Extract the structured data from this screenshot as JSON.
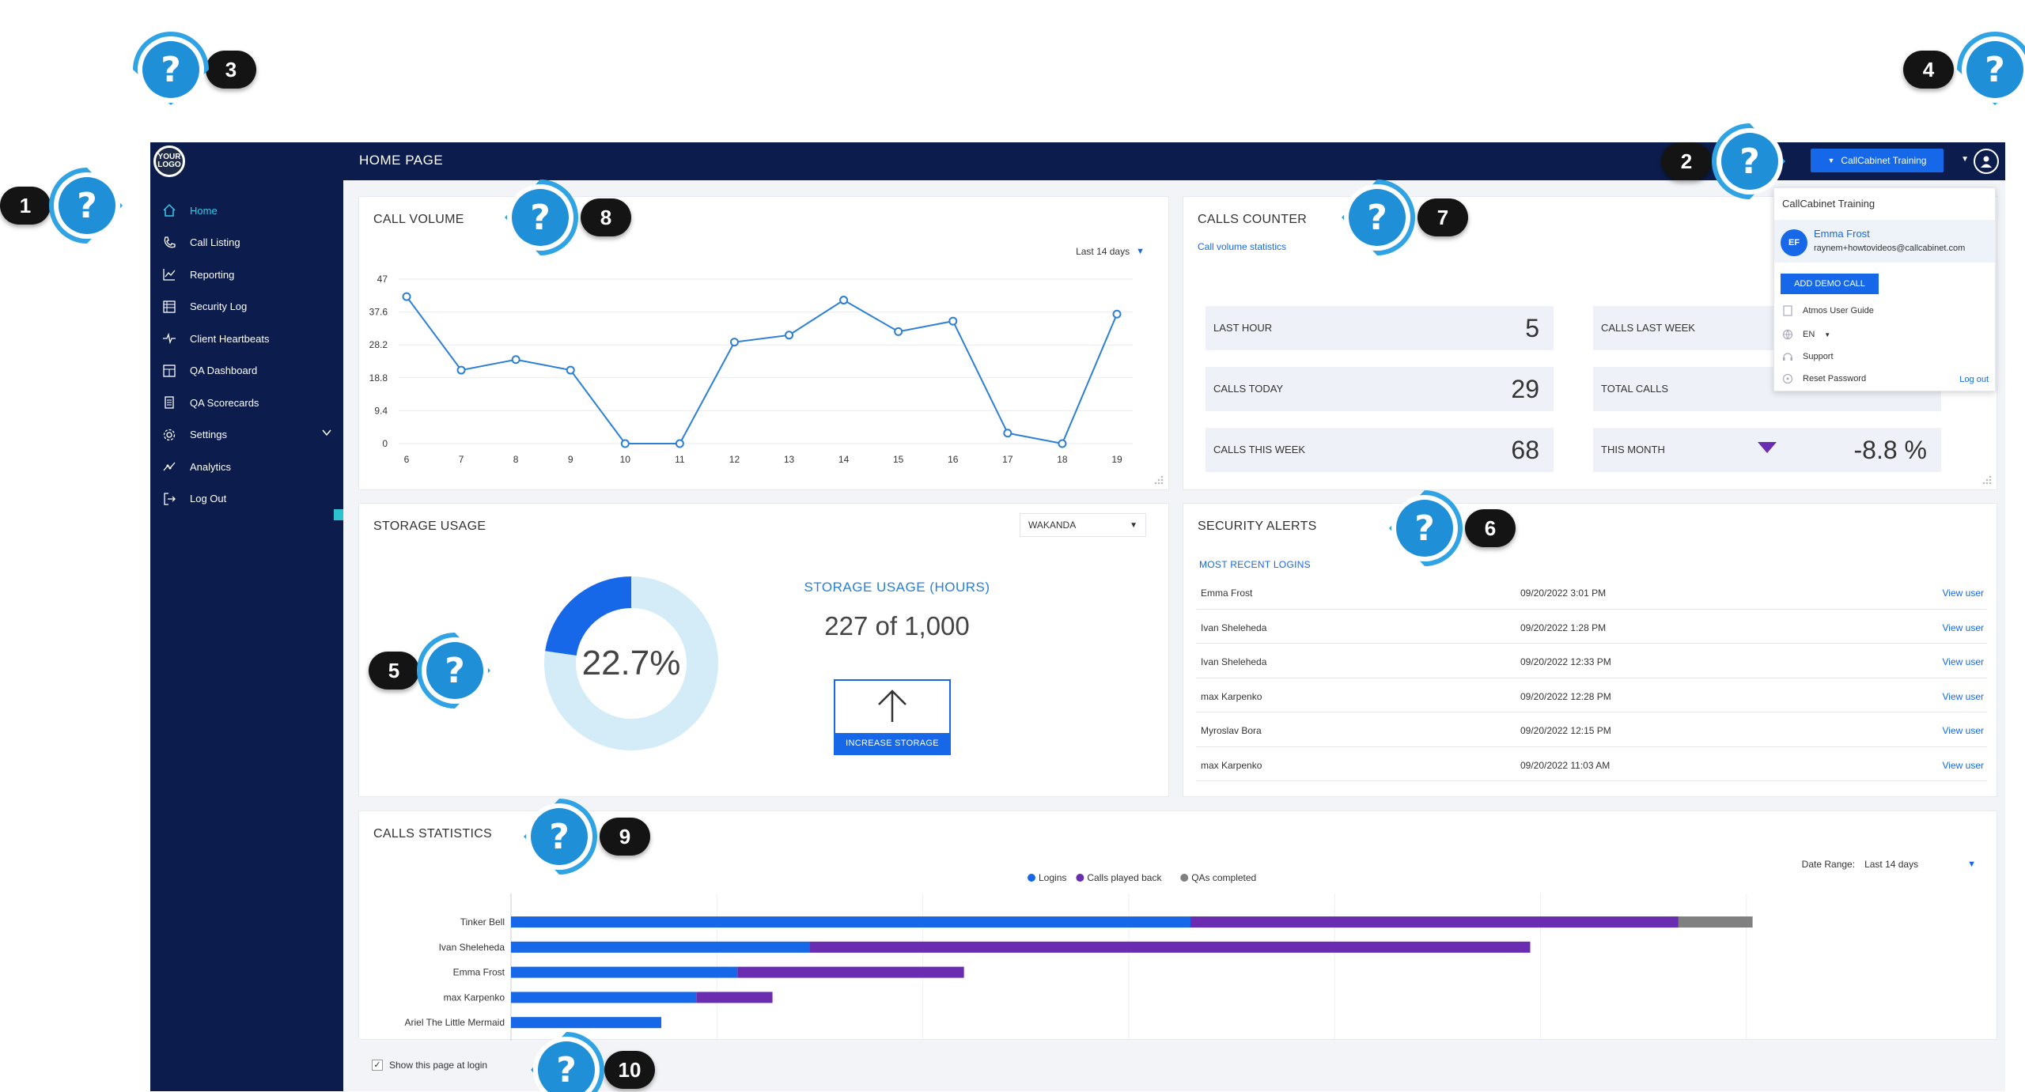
{
  "topbar": {
    "logo_text": "YOUR LOGO",
    "page_title": "HOME PAGE",
    "tenant_label": "CallCabinet Training"
  },
  "sidebar": {
    "items": [
      {
        "label": "Home",
        "icon": "home-icon",
        "active": true
      },
      {
        "label": "Call Listing",
        "icon": "phone-icon"
      },
      {
        "label": "Reporting",
        "icon": "chart-icon"
      },
      {
        "label": "Security Log",
        "icon": "log-icon"
      },
      {
        "label": "Client Heartbeats",
        "icon": "heartbeat-icon"
      },
      {
        "label": "QA Dashboard",
        "icon": "dashboard-icon"
      },
      {
        "label": "QA Scorecards",
        "icon": "scorecard-icon"
      },
      {
        "label": "Settings",
        "icon": "gear-icon",
        "expandable": true
      },
      {
        "label": "Analytics",
        "icon": "analytics-icon"
      },
      {
        "label": "Log Out",
        "icon": "logout-icon"
      }
    ]
  },
  "call_volume": {
    "title": "CALL VOLUME",
    "range": "Last 14 days",
    "chart_data": {
      "type": "line",
      "x": [
        "6",
        "7",
        "8",
        "9",
        "10",
        "11",
        "12",
        "13",
        "14",
        "15",
        "16",
        "17",
        "18",
        "19"
      ],
      "values": [
        42,
        21,
        24,
        21,
        0,
        0,
        29,
        31,
        41,
        32,
        35,
        3,
        0,
        37
      ],
      "yticks": [
        "47",
        "37.6",
        "28.2",
        "18.8",
        "9.4",
        "0"
      ],
      "ylim": [
        0,
        47
      ],
      "color": "#2b7fd4",
      "grid": true
    }
  },
  "calls_counter": {
    "title": "CALLS COUNTER",
    "subtitle": "Call volume statistics",
    "stats": [
      {
        "label": "LAST HOUR",
        "value": "5"
      },
      {
        "label": "CALLS LAST WEEK",
        "value": ""
      },
      {
        "label": "CALLS TODAY",
        "value": "29"
      },
      {
        "label": "TOTAL CALLS",
        "value": ""
      },
      {
        "label": "CALLS THIS WEEK",
        "value": "68"
      },
      {
        "label": "THIS MONTH",
        "value": "-8.8 %"
      }
    ]
  },
  "storage": {
    "title": "STORAGE USAGE",
    "workspace": "WAKANDA",
    "percent_label": "22.7%",
    "percent": 22.7,
    "usage_title": "STORAGE USAGE (HOURS)",
    "usage_value": "227 of 1,000",
    "increase_label": "INCREASE STORAGE",
    "colors": {
      "used": "#1668e8",
      "free": "#d4ecf8"
    }
  },
  "security": {
    "title": "SECURITY ALERTS",
    "subtitle": "MOST RECENT LOGINS",
    "rows": [
      {
        "user": "Emma Frost",
        "time": "09/20/2022 3:01 PM",
        "action": "View user"
      },
      {
        "user": "Ivan Sheleheda",
        "time": "09/20/2022 1:28 PM",
        "action": "View user"
      },
      {
        "user": "Ivan Sheleheda",
        "time": "09/20/2022 12:33 PM",
        "action": "View user"
      },
      {
        "user": "max Karpenko",
        "time": "09/20/2022 12:28 PM",
        "action": "View user"
      },
      {
        "user": "Myroslav Bora",
        "time": "09/20/2022 12:15 PM",
        "action": "View user"
      },
      {
        "user": "max Karpenko",
        "time": "09/20/2022 11:03 AM",
        "action": "View user"
      }
    ]
  },
  "calls_stats": {
    "title": "CALLS STATISTICS",
    "date_range_label": "Date Range:",
    "date_range_value": "Last 14 days",
    "chart_data": {
      "type": "bar",
      "orientation": "horizontal",
      "stacked": true,
      "categories": [
        "Tinker Bell",
        "Ivan Sheleheda",
        "Emma Frost",
        "max Karpenko",
        "Ariel The Little Mermaid"
      ],
      "series": [
        {
          "name": "Logins",
          "color": "#1668e8",
          "values": [
            33,
            14.5,
            11,
            9,
            7.3
          ]
        },
        {
          "name": "Calls played back",
          "color": "#6a2cb0",
          "values": [
            23.7,
            35,
            11,
            3.7,
            0
          ]
        },
        {
          "name": "QAs completed",
          "color": "#808080",
          "values": [
            3.6,
            0,
            0,
            0,
            0
          ]
        }
      ],
      "xlim": [
        0,
        66
      ],
      "gridlines": [
        10,
        20,
        30,
        40,
        50,
        60
      ],
      "legend": "top-center"
    }
  },
  "footer": {
    "show_login_label": "Show this page at login",
    "checked": true
  },
  "dropdown": {
    "org": "CallCabinet Training",
    "avatar_initials": "EF",
    "name": "Emma Frost",
    "email": "raynem+howtovideos@callcabinet.com",
    "demo_button": "ADD DEMO CALL",
    "items": [
      {
        "label": "Atmos User Guide",
        "icon": "document-icon"
      },
      {
        "label": "EN",
        "icon": "globe-icon"
      },
      {
        "label": "Support",
        "icon": "support-icon"
      },
      {
        "label": "Reset Password",
        "icon": "key-icon"
      }
    ],
    "logout": "Log out"
  },
  "help_markers": [
    {
      "num": "1"
    },
    {
      "num": "2"
    },
    {
      "num": "3"
    },
    {
      "num": "4"
    },
    {
      "num": "5"
    },
    {
      "num": "6"
    },
    {
      "num": "7"
    },
    {
      "num": "8"
    },
    {
      "num": "9"
    },
    {
      "num": "10"
    }
  ],
  "help_symbol": "?"
}
